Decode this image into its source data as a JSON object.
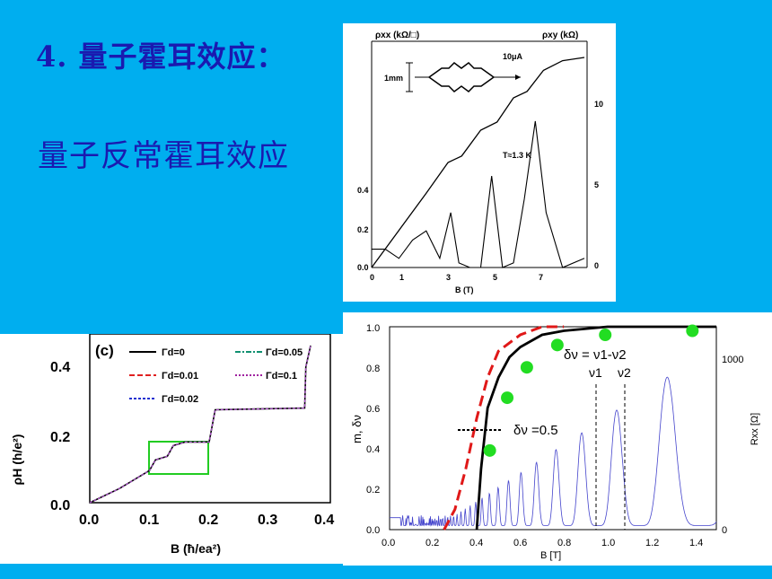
{
  "slide": {
    "title": "4. 量子霍耳效应：",
    "subtitle": "量子反常霍耳效应",
    "background": "#00AEEF",
    "text_color": "#1A1AB0"
  },
  "chart_data": [
    {
      "type": "line",
      "xlabel": "B (T)",
      "ylabel_left": "ρxx (kΩ/□)",
      "ylabel_right": "ρxy (kΩ)",
      "x_ticks": [
        "0",
        "1",
        "3",
        "5",
        "7"
      ],
      "y_ticks_left": [
        "0.0",
        "0.2",
        "0.4"
      ],
      "y_ticks_right": [
        "0",
        "5",
        "10"
      ],
      "annotations": [
        "10μA",
        "1mm",
        "T≈1.3 K"
      ],
      "series": [
        {
          "role": "rho_xy",
          "x": [
            0,
            1,
            2,
            2.8,
            3.3,
            4.0,
            4.6,
            5.2,
            5.7,
            6.3,
            7.0,
            7.8
          ],
          "y": [
            0,
            2.3,
            4.6,
            6.5,
            6.9,
            8.5,
            9.0,
            10.5,
            10.9,
            12.2,
            12.8,
            13
          ]
        },
        {
          "role": "rho_xx",
          "x": [
            0,
            0.5,
            1,
            1.5,
            2,
            2.5,
            2.9,
            3.2,
            3.6,
            4.0,
            4.4,
            4.8,
            5.2,
            5.6,
            6.0,
            6.4,
            7.0,
            7.8
          ],
          "y": [
            0.04,
            0.04,
            0.02,
            0.06,
            0.08,
            0.02,
            0.12,
            0.01,
            0.0,
            0.0,
            0.2,
            0.0,
            0.01,
            0.15,
            0.32,
            0.12,
            0.0,
            0.02
          ]
        }
      ]
    },
    {
      "type": "line",
      "panel_label": "(c)",
      "xlabel": "B (ħ/ea²)",
      "ylabel": "ρH (h/e²)",
      "x_ticks": [
        "0.0",
        "0.1",
        "0.2",
        "0.3",
        "0.4"
      ],
      "y_ticks": [
        "0.0",
        "0.2",
        "0.4"
      ],
      "legend": [
        "Γd=0",
        "Γd=0.01",
        "Γd=0.02",
        "Γd=0.05",
        "Γd=0.1"
      ],
      "series": [
        {
          "name": "Γd=0",
          "color": "#000000",
          "x": [
            0,
            0.05,
            0.1,
            0.11,
            0.13,
            0.14,
            0.16,
            0.2,
            0.21,
            0.36,
            0.362,
            0.37
          ],
          "y": [
            0,
            0.04,
            0.09,
            0.12,
            0.13,
            0.16,
            0.17,
            0.17,
            0.26,
            0.265,
            0.38,
            0.44
          ]
        },
        {
          "name": "Γd=0.01",
          "color": "#E02020",
          "x": [
            0,
            0.05,
            0.1,
            0.11,
            0.13,
            0.14,
            0.16,
            0.2,
            0.21,
            0.36,
            0.362,
            0.37
          ],
          "y": [
            0,
            0.04,
            0.09,
            0.12,
            0.13,
            0.16,
            0.17,
            0.17,
            0.26,
            0.265,
            0.38,
            0.44
          ]
        }
      ]
    },
    {
      "type": "line",
      "xlabel": "B [T]",
      "ylabel": "m, δν",
      "ylabel_right": "Rxx [Ω]",
      "x_ticks": [
        "0.0",
        "0.2",
        "0.4",
        "0.6",
        "0.8",
        "1.0",
        "1.2",
        "1.4"
      ],
      "y_ticks": [
        "0.0",
        "0.2",
        "0.4",
        "0.6",
        "0.8",
        "1.0"
      ],
      "y_ticks_right": [
        "0",
        "1000"
      ],
      "annotations": [
        "δν = ν1-ν2",
        "ν1",
        "ν2",
        "δν =0.5"
      ],
      "series": [
        {
          "role": "m_black",
          "x": [
            0.4,
            0.42,
            0.45,
            0.5,
            0.55,
            0.6,
            0.7,
            0.8,
            1.0,
            1.5
          ],
          "y": [
            0,
            0.3,
            0.6,
            0.75,
            0.85,
            0.9,
            0.96,
            0.98,
            1.0,
            1.0
          ]
        },
        {
          "role": "m_red_dashed",
          "x": [
            0.25,
            0.3,
            0.35,
            0.4,
            0.45,
            0.5,
            0.6,
            0.7,
            0.8
          ],
          "y": [
            0,
            0.1,
            0.3,
            0.55,
            0.75,
            0.88,
            0.96,
            1.0,
            1.0
          ]
        },
        {
          "role": "delta_nu_points",
          "x": [
            0.46,
            0.54,
            0.63,
            0.77,
            0.99,
            1.39
          ],
          "y": [
            0.39,
            0.65,
            0.8,
            0.91,
            0.96,
            0.98
          ]
        }
      ]
    }
  ]
}
